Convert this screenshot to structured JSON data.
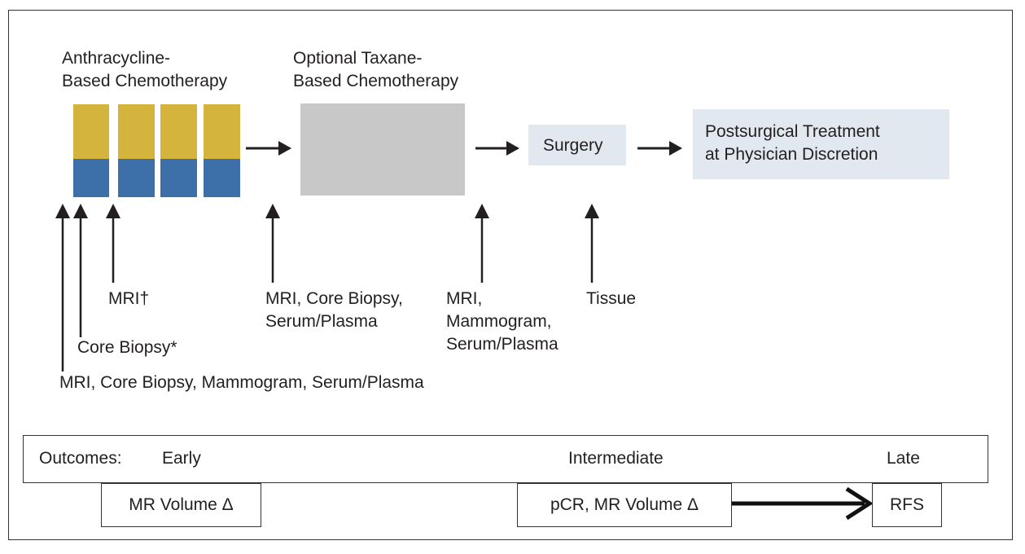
{
  "treatment": {
    "anthracycline_label_line1": "Anthracycline-",
    "anthracycline_label_line2": "Based Chemotherapy",
    "taxane_label_line1": "Optional Taxane-",
    "taxane_label_line2": "Based Chemotherapy",
    "surgery_label": "Surgery",
    "postsurgical_line1": "Postsurgical Treatment",
    "postsurgical_line2": "at Physician Discretion"
  },
  "timepoints": {
    "baseline": "MRI, Core Biopsy, Mammogram, Serum/Plasma",
    "core_biopsy": "Core Biopsy*",
    "mri": "MRI†",
    "pre_taxane_line1": "MRI, Core Biopsy,",
    "pre_taxane_line2": "Serum/Plasma",
    "pre_surgery_line1": "MRI,",
    "pre_surgery_line2": "Mammogram,",
    "pre_surgery_line3": "Serum/Plasma",
    "tissue": "Tissue"
  },
  "outcomes": {
    "heading": "Outcomes:",
    "early": "Early",
    "intermediate": "Intermediate",
    "late": "Late",
    "early_measure": "MR Volume Δ",
    "intermediate_measure": "pCR, MR Volume Δ",
    "late_measure": "RFS"
  },
  "colors": {
    "chemo_gold": "#d4b43c",
    "chemo_blue": "#3d6fa8",
    "taxane_gray": "#c8c8c8",
    "box_fill": "#e1e8f0"
  }
}
